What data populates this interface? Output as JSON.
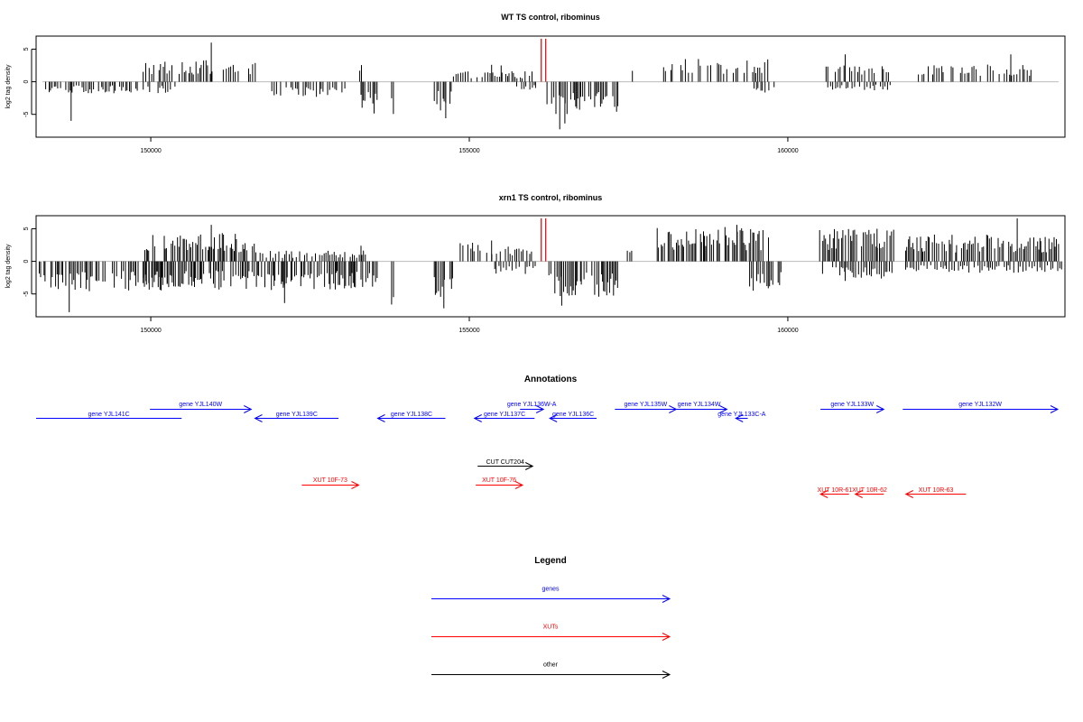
{
  "chart_data": [
    {
      "type": "bar",
      "title": "WT TS control, ribominus",
      "ylabel": "log2 tag density",
      "xlabel": "",
      "xlim": [
        148200,
        164350
      ],
      "ylim": [
        -8.5,
        7
      ],
      "yticks": [
        -5,
        0,
        5
      ],
      "xticks": [
        150000,
        155000,
        160000
      ],
      "xtick_labels": [
        "150000",
        "155000",
        "160000"
      ],
      "bar_color": "#000000",
      "marker_color": "#dd0000",
      "markers": [
        {
          "x": 156130,
          "y": 6.6
        },
        {
          "x": 156200,
          "y": 6.6
        }
      ],
      "pos_regions": [
        {
          "from": 149880,
          "to": 151650,
          "level": 3.0,
          "peaks": [
            [
              150950,
              6.0
            ]
          ]
        },
        {
          "from": 153280,
          "to": 153320,
          "level": 2.6
        },
        {
          "from": 154750,
          "to": 156000,
          "level": 1.5,
          "peaks": [
            [
              155350,
              2.6
            ],
            [
              155500,
              2.5
            ]
          ]
        },
        {
          "from": 157560,
          "to": 157590,
          "level": 1.6
        },
        {
          "from": 158050,
          "to": 159700,
          "level": 3.2
        },
        {
          "from": 160600,
          "to": 161700,
          "level": 2.6,
          "peaks": [
            [
              160900,
              4.2
            ]
          ]
        },
        {
          "from": 162050,
          "to": 163820,
          "level": 2.4,
          "peaks": [
            [
              163500,
              4.2
            ]
          ]
        }
      ],
      "neg_regions": [
        {
          "from": 148350,
          "to": 150450,
          "level": -1.6,
          "peaks": [
            [
              148750,
              -6.0
            ]
          ]
        },
        {
          "from": 151900,
          "to": 153100,
          "level": -2.2
        },
        {
          "from": 153300,
          "to": 153560,
          "level": -4.5
        },
        {
          "from": 153780,
          "to": 153820,
          "level": -5.4
        },
        {
          "from": 154450,
          "to": 154740,
          "level": -4.0,
          "peaks": [
            [
              154630,
              -5.6
            ]
          ]
        },
        {
          "from": 155720,
          "to": 156060,
          "level": -1.2
        },
        {
          "from": 156220,
          "to": 157350,
          "level": -4.5,
          "peaks": [
            [
              156500,
              -6.4
            ],
            [
              156420,
              -7.3
            ]
          ]
        },
        {
          "from": 159380,
          "to": 159800,
          "level": -2.2
        },
        {
          "from": 160600,
          "to": 161700,
          "level": -1.2
        }
      ]
    },
    {
      "type": "bar",
      "title": "xrn1 TS control, ribominus",
      "ylabel": "log2 tag density",
      "xlabel": "",
      "xlim": [
        148200,
        164350
      ],
      "ylim": [
        -8.5,
        7
      ],
      "yticks": [
        -5,
        0,
        5
      ],
      "xticks": [
        150000,
        155000,
        160000
      ],
      "xtick_labels": [
        "150000",
        "155000",
        "160000"
      ],
      "bar_color": "#000000",
      "marker_color": "#dd0000",
      "markers": [
        {
          "x": 156130,
          "y": 6.6
        },
        {
          "x": 156200,
          "y": 6.6
        }
      ],
      "pos_regions": [
        {
          "from": 149880,
          "to": 151650,
          "level": 4.0,
          "peaks": [
            [
              150950,
              5.6
            ]
          ]
        },
        {
          "from": 151650,
          "to": 153400,
          "level": 1.5,
          "peaks": [
            [
              153300,
              2.4
            ]
          ]
        },
        {
          "from": 154780,
          "to": 156000,
          "level": 2.6,
          "peaks": [
            [
              155350,
              3.2
            ]
          ]
        },
        {
          "from": 157480,
          "to": 157560,
          "level": 2.4
        },
        {
          "from": 157950,
          "to": 159700,
          "level": 4.8,
          "peaks": [
            [
              159200,
              5.6
            ]
          ]
        },
        {
          "from": 160500,
          "to": 161700,
          "level": 4.6,
          "peaks": [
            [
              161400,
              5.0
            ]
          ]
        },
        {
          "from": 161850,
          "to": 164300,
          "level": 3.8,
          "peaks": [
            [
              163600,
              6.6
            ]
          ]
        }
      ],
      "neg_regions": [
        {
          "from": 148250,
          "to": 150450,
          "level": -4.2,
          "peaks": [
            [
              148720,
              -7.8
            ]
          ]
        },
        {
          "from": 149880,
          "to": 153300,
          "level": -4.0,
          "peaks": [
            [
              152100,
              -6.4
            ]
          ]
        },
        {
          "from": 153300,
          "to": 153560,
          "level": -4.8
        },
        {
          "from": 153780,
          "to": 153820,
          "level": -6.3
        },
        {
          "from": 154450,
          "to": 154740,
          "level": -5.5,
          "peaks": [
            [
              154600,
              -7.2
            ]
          ]
        },
        {
          "from": 155400,
          "to": 156060,
          "level": -1.8
        },
        {
          "from": 156220,
          "to": 157350,
          "level": -5.0,
          "peaks": [
            [
              156450,
              -6.8
            ]
          ]
        },
        {
          "from": 159400,
          "to": 159900,
          "level": -4.2
        },
        {
          "from": 160500,
          "to": 161700,
          "level": -2.4,
          "peaks": [
            [
              160900,
              -3.0
            ]
          ]
        },
        {
          "from": 161850,
          "to": 164300,
          "level": -1.6
        }
      ]
    }
  ],
  "annotations": {
    "title": "Annotations",
    "features": [
      {
        "label": "gene YJL141C",
        "start": 148200,
        "end": 150500,
        "dir": "none",
        "row": 2,
        "color": "blue"
      },
      {
        "label": "gene YJL140W",
        "start": 150000,
        "end": 151600,
        "dir": "right",
        "row": 1,
        "color": "blue"
      },
      {
        "label": "gene YJL139C",
        "start": 151660,
        "end": 152980,
        "dir": "left",
        "row": 2,
        "color": "blue"
      },
      {
        "label": "gene YJL138C",
        "start": 153600,
        "end": 154670,
        "dir": "left",
        "row": 2,
        "color": "blue"
      },
      {
        "label": "gene YJL137C",
        "start": 155130,
        "end": 156080,
        "dir": "left",
        "row": 2,
        "color": "blue"
      },
      {
        "label": "gene YJL136W-A",
        "start": 155850,
        "end": 156220,
        "dir": "right",
        "row": 1,
        "color": "blue"
      },
      {
        "label": "gene YJL136C",
        "start": 156320,
        "end": 157060,
        "dir": "left",
        "row": 2,
        "color": "blue"
      },
      {
        "label": "gene YJL135W",
        "start": 157350,
        "end": 158320,
        "dir": "right",
        "row": 1,
        "color": "blue"
      },
      {
        "label": "gene YJL134W",
        "start": 158240,
        "end": 159120,
        "dir": "right",
        "row": 1,
        "color": "blue"
      },
      {
        "label": "gene YJL133C-A",
        "start": 159260,
        "end": 159450,
        "dir": "left",
        "row": 2,
        "color": "blue"
      },
      {
        "label": "gene YJL133W",
        "start": 160600,
        "end": 161600,
        "dir": "right",
        "row": 1,
        "color": "blue"
      },
      {
        "label": "gene YJL132W",
        "start": 161900,
        "end": 164350,
        "dir": "right",
        "row": 1,
        "color": "blue"
      },
      {
        "label": "CUT CUT204",
        "start": 155180,
        "end": 156050,
        "dir": "right",
        "row": 3,
        "color": "black"
      },
      {
        "label": "XUT 10F-73",
        "start": 152400,
        "end": 153300,
        "dir": "right",
        "row": 4,
        "color": "red"
      },
      {
        "label": "XUT 10F-76",
        "start": 155150,
        "end": 155890,
        "dir": "right",
        "row": 4,
        "color": "red"
      },
      {
        "label": "XUT 10R-61",
        "start": 160600,
        "end": 161050,
        "dir": "left",
        "row": 5,
        "color": "red"
      },
      {
        "label": "XUT 10R-62",
        "start": 161150,
        "end": 161600,
        "dir": "left",
        "row": 5,
        "color": "red"
      },
      {
        "label": "XUT 10R-63",
        "start": 161950,
        "end": 162900,
        "dir": "left",
        "row": 5,
        "color": "red"
      }
    ]
  },
  "legend": {
    "title": "Legend",
    "items": [
      {
        "label": "genes",
        "color": "blue"
      },
      {
        "label": "XUTs",
        "color": "red"
      },
      {
        "label": "other",
        "color": "black"
      }
    ]
  },
  "colors": {
    "blue": "#0000ff",
    "red": "#ff0000",
    "black": "#000000",
    "baseline": "#bbbbbb"
  }
}
